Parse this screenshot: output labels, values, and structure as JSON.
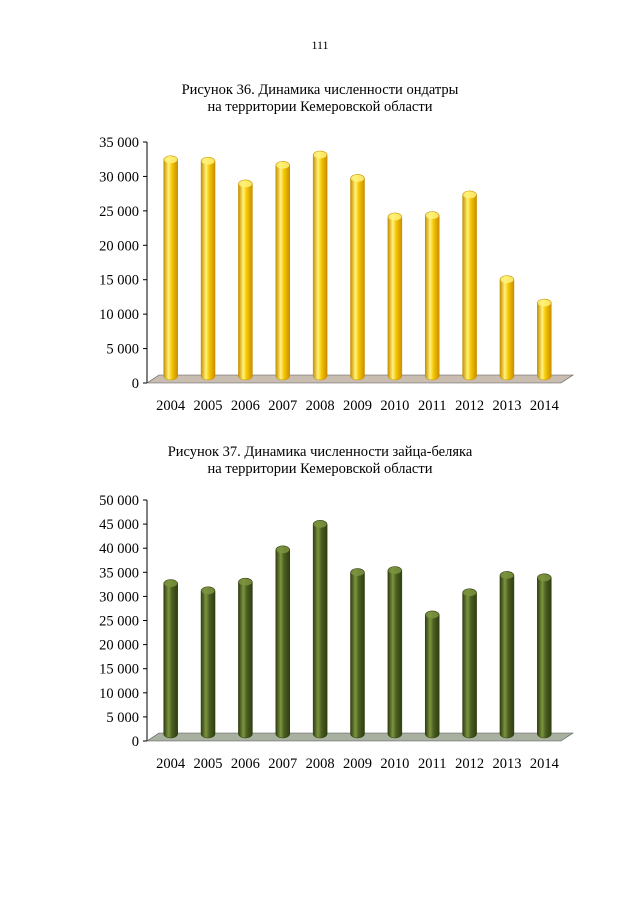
{
  "page": {
    "number": "111"
  },
  "chart_data": [
    {
      "type": "bar",
      "title": "Рисунок 36. Динамика численности ондатры",
      "subtitle": "на территории Кемеровской области",
      "categories": [
        "2004",
        "2005",
        "2006",
        "2007",
        "2008",
        "2009",
        "2010",
        "2011",
        "2012",
        "2013",
        "2014"
      ],
      "values": [
        33000,
        32800,
        29500,
        32200,
        33700,
        30300,
        24700,
        24900,
        27900,
        15600,
        12200
      ],
      "ylim": [
        0,
        35000
      ],
      "yticks": [
        0,
        5000,
        10000,
        15000,
        20000,
        25000,
        30000,
        35000
      ],
      "ytick_labels": [
        "0",
        "5 000",
        "10 000",
        "15 000",
        "20 000",
        "25 000",
        "30 000",
        "35 000"
      ],
      "grid": false,
      "style": "3d-cylinder",
      "colors": {
        "bar": "#f5c400",
        "bar_light": "#fff27a",
        "bar_dark": "#c78f00",
        "floor": "#c9bcb0"
      }
    },
    {
      "type": "bar",
      "title": "Рисунок 37. Динамика численности зайца-беляка",
      "subtitle": "на территории Кемеровской области",
      "categories": [
        "2004",
        "2005",
        "2006",
        "2007",
        "2008",
        "2009",
        "2010",
        "2011",
        "2012",
        "2013",
        "2014"
      ],
      "values": [
        33500,
        32000,
        33800,
        40500,
        45800,
        35800,
        36200,
        27000,
        31600,
        35200,
        34700
      ],
      "ylim": [
        0,
        50000
      ],
      "yticks": [
        0,
        5000,
        10000,
        15000,
        20000,
        25000,
        30000,
        35000,
        40000,
        45000,
        50000
      ],
      "ytick_labels": [
        "0",
        "5 000",
        "10 000",
        "15 000",
        "20 000",
        "25 000",
        "30 000",
        "35 000",
        "40 000",
        "45 000",
        "50 000"
      ],
      "grid": false,
      "style": "3d-cylinder",
      "colors": {
        "bar": "#4b5e20",
        "bar_light": "#7d9440",
        "bar_dark": "#2e3d10",
        "floor": "#a8b1a0"
      }
    }
  ]
}
